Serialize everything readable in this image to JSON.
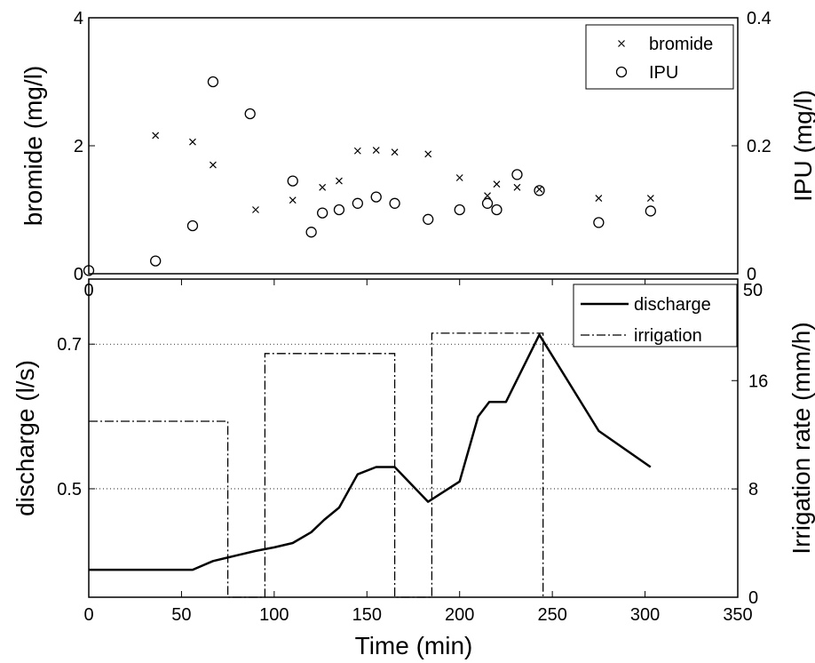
{
  "chart_data": [
    {
      "type": "scatter",
      "panel": "top",
      "xlim": [
        0,
        350
      ],
      "ylabel": "bromide (mg/l)",
      "ylim": [
        0,
        4
      ],
      "yticks": [
        "0",
        "2",
        "4"
      ],
      "ylabel_right": "IPU (mg/l)",
      "ylim_right": [
        0,
        0.4
      ],
      "yticks_right": [
        "0",
        "0.2",
        "0.4"
      ],
      "legend": {
        "placement": "top-right",
        "entries": [
          "bromide",
          "IPU"
        ]
      },
      "series": [
        {
          "name": "bromide",
          "marker": "x",
          "axis": "left",
          "x": [
            36,
            56,
            67,
            90,
            110,
            126,
            135,
            145,
            155,
            165,
            183,
            200,
            215,
            220,
            231,
            243,
            275,
            303
          ],
          "y": [
            2.16,
            2.06,
            1.7,
            1.0,
            1.15,
            1.35,
            1.45,
            1.92,
            1.93,
            1.9,
            1.87,
            1.5,
            1.22,
            1.4,
            1.35,
            1.32,
            1.18,
            1.18
          ]
        },
        {
          "name": "IPU",
          "marker": "o",
          "axis": "right",
          "x": [
            0,
            36,
            56,
            67,
            87,
            110,
            120,
            126,
            135,
            145,
            155,
            165,
            183,
            200,
            215,
            220,
            231,
            243,
            275,
            303
          ],
          "y": [
            0.005,
            0.02,
            0.075,
            0.3,
            0.25,
            0.145,
            0.065,
            0.095,
            0.1,
            0.11,
            0.12,
            0.11,
            0.085,
            0.1,
            0.11,
            0.1,
            0.155,
            0.13,
            0.08,
            0.098
          ]
        }
      ]
    },
    {
      "type": "line",
      "panel": "bottom",
      "xlabel": "Time (min)",
      "xlim": [
        0,
        350
      ],
      "xticks": [
        "0",
        "50",
        "100",
        "150",
        "200",
        "250",
        "300",
        "350"
      ],
      "ylabel": "discharge (l/s)",
      "ylim": [
        0.35,
        0.79
      ],
      "yticks": [
        "0.5",
        "0.7"
      ],
      "ylabel_right": "Irrigation rate (mm/h)",
      "ylim_right": [
        0,
        23.5
      ],
      "yticks_right": [
        "0",
        "8",
        "16"
      ],
      "top_tick_fragments": [
        "0",
        "50"
      ],
      "grid": "horizontal dotted at 0.5 and 0.7",
      "legend": {
        "placement": "top-right",
        "entries": [
          "discharge",
          "irrigation"
        ]
      },
      "series": [
        {
          "name": "discharge",
          "style": "solid",
          "axis": "left",
          "x": [
            0,
            56,
            67,
            80,
            90,
            100,
            110,
            120,
            127,
            135,
            145,
            155,
            165,
            183,
            200,
            210,
            216,
            225,
            243,
            275,
            303
          ],
          "y": [
            0.388,
            0.388,
            0.4,
            0.408,
            0.414,
            0.419,
            0.425,
            0.44,
            0.457,
            0.474,
            0.52,
            0.53,
            0.53,
            0.482,
            0.51,
            0.6,
            0.62,
            0.62,
            0.713,
            0.58,
            0.53
          ]
        },
        {
          "name": "irrigation",
          "style": "dash-dot",
          "axis": "right",
          "x": [
            0,
            75,
            75,
            95,
            95,
            165,
            165,
            185,
            185,
            245,
            245
          ],
          "y": [
            13,
            13,
            0,
            0,
            18,
            18,
            0,
            0,
            19.5,
            19.5,
            0
          ]
        }
      ]
    }
  ]
}
